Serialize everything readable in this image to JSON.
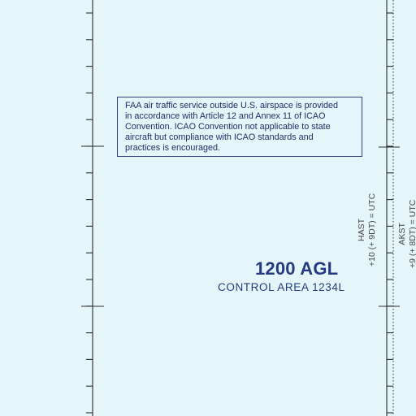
{
  "notice": {
    "lines": [
      "FAA air traffic service outside U.S. airspace is provided",
      "in accordance with Article 12 and Annex 11 of ICAO",
      "Convention. ICAO Convention not applicable to state",
      "aircraft but compliance with ICAO standards and",
      "practices is encouraged."
    ]
  },
  "airspace": {
    "floor": "1200 AGL",
    "control_area": "CONTROL AREA 1234L"
  },
  "time_zones": {
    "hast": {
      "name": "HAST",
      "offset": "+10 (+ 9DT) = UTC"
    },
    "akst": {
      "name": "AKST",
      "offset": "+9 (+ 8DT) = UTC"
    }
  },
  "colors": {
    "background": "#e4f6fa",
    "border_lines": "#2a2a2a",
    "chart_text": "#243a80"
  }
}
